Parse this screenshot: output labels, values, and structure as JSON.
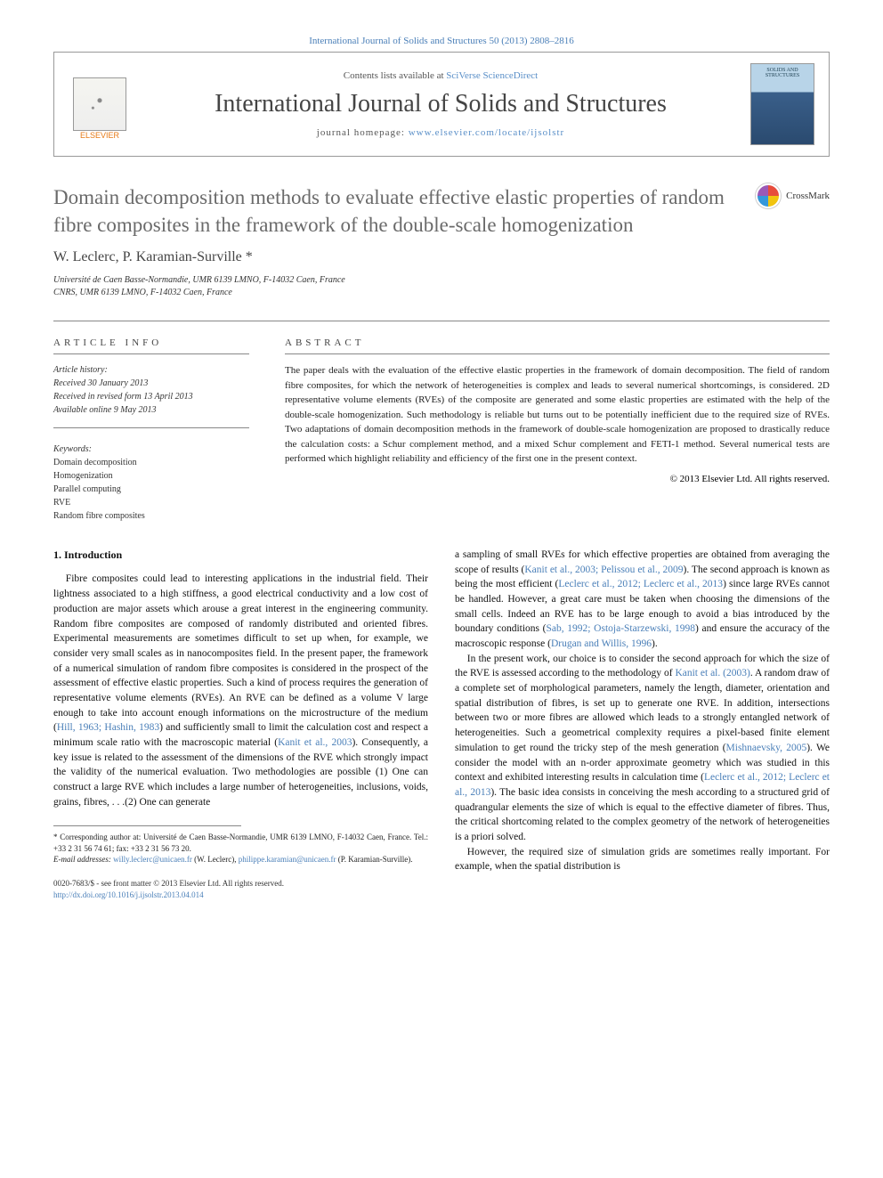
{
  "header": {
    "citation_prefix": "International Journal of Solids and Structures 50 (2013) 2808–2816",
    "contents_prefix": "Contents lists available at ",
    "contents_link": "SciVerse ScienceDirect",
    "journal_title": "International Journal of Solids and Structures",
    "homepage_prefix": "journal homepage: ",
    "homepage_link": "www.elsevier.com/locate/ijsolstr",
    "publisher": "ELSEVIER",
    "cover_label": "SOLIDS AND STRUCTURES"
  },
  "article": {
    "title": "Domain decomposition methods to evaluate effective elastic properties of random fibre composites in the framework of the double-scale homogenization",
    "crossmark": "CrossMark",
    "authors": "W. Leclerc, P. Karamian-Surville",
    "author_star": "*",
    "affil1": "Université de Caen Basse-Normandie, UMR 6139 LMNO, F-14032 Caen, France",
    "affil2": "CNRS, UMR 6139 LMNO, F-14032 Caen, France"
  },
  "info": {
    "label": "ARTICLE INFO",
    "history_label": "Article history:",
    "received": "Received 30 January 2013",
    "revised": "Received in revised form 13 April 2013",
    "online": "Available online 9 May 2013",
    "keywords_label": "Keywords:",
    "kw1": "Domain decomposition",
    "kw2": "Homogenization",
    "kw3": "Parallel computing",
    "kw4": "RVE",
    "kw5": "Random fibre composites"
  },
  "abstract": {
    "label": "ABSTRACT",
    "text": "The paper deals with the evaluation of the effective elastic properties in the framework of domain decomposition. The field of random fibre composites, for which the network of heterogeneities is complex and leads to several numerical shortcomings, is considered. 2D representative volume elements (RVEs) of the composite are generated and some elastic properties are estimated with the help of the double-scale homogenization. Such methodology is reliable but turns out to be potentially inefficient due to the required size of RVEs. Two adaptations of domain decomposition methods in the framework of double-scale homogenization are proposed to drastically reduce the calculation costs: a Schur complement method, and a mixed Schur complement and FETI-1 method. Several numerical tests are performed which highlight reliability and efficiency of the first one in the present context.",
    "copyright": "© 2013 Elsevier Ltd. All rights reserved."
  },
  "body": {
    "section1": "1. Introduction",
    "col1p1a": "Fibre composites could lead to interesting applications in the industrial field. Their lightness associated to a high stiffness, a good electrical conductivity and a low cost of production are major assets which arouse a great interest in the engineering community. Random fibre composites are composed of randomly distributed and oriented fibres. Experimental measurements are sometimes difficult to set up when, for example, we consider very small scales as in nanocomposites field. In the present paper, the framework of a numerical simulation of random fibre composites is considered in the prospect of the assessment of effective elastic properties. Such a kind of process requires the generation of representative volume elements (RVEs). An RVE can be defined as a volume V large enough to take into account enough informations on the microstructure of the medium (",
    "col1c1": "Hill, 1963; Hashin, 1983",
    "col1p1b": ") and sufficiently small to limit the calculation cost and respect a minimum scale ratio with the macroscopic material (",
    "col1c2": "Kanit et al., 2003",
    "col1p1c": "). Consequently, a key issue is related to the assessment of the dimensions of the RVE which strongly impact the validity of the numerical evaluation. Two methodologies are possible (1) One can construct a large RVE which includes a large number of heterogeneities, inclusions, voids, grains, fibres, . . .(2) One can generate",
    "col2p1a": "a sampling of small RVEs for which effective properties are obtained from averaging the scope of results (",
    "col2c1": "Kanit et al., 2003; Pelissou et al., 2009",
    "col2p1b": "). The second approach is known as being the most efficient (",
    "col2c2": "Leclerc et al., 2012; Leclerc et al., 2013",
    "col2p1c": ") since large RVEs cannot be handled. However, a great care must be taken when choosing the dimensions of the small cells. Indeed an RVE has to be large enough to avoid a bias introduced by the boundary conditions (",
    "col2c3": "Sab, 1992; Ostoja-Starzewski, 1998",
    "col2p1d": ") and ensure the accuracy of the macroscopic response (",
    "col2c4": "Drugan and Willis, 1996",
    "col2p1e": ").",
    "col2p2a": "In the present work, our choice is to consider the second approach for which the size of the RVE is assessed according to the methodology of ",
    "col2c5": "Kanit et al. (2003)",
    "col2p2b": ". A random draw of a complete set of morphological parameters, namely the length, diameter, orientation and spatial distribution of fibres, is set up to generate one RVE. In addition, intersections between two or more fibres are allowed which leads to a strongly entangled network of heterogeneities. Such a geometrical complexity requires a pixel-based finite element simulation to get round the tricky step of the mesh generation (",
    "col2c6": "Mishnaevsky, 2005",
    "col2p2c": "). We consider the model with an n-order approximate geometry which was studied in this context and exhibited interesting results in calculation time (",
    "col2c7": "Leclerc et al., 2012; Leclerc et al., 2013",
    "col2p2d": "). The basic idea consists in conceiving the mesh according to a structured grid of quadrangular elements the size of which is equal to the effective diameter of fibres. Thus, the critical shortcoming related to the complex geometry of the network of heterogeneities is a priori solved.",
    "col2p3": "However, the required size of simulation grids are sometimes really important. For example, when the spatial distribution is"
  },
  "footnotes": {
    "corr_label": "* Corresponding author at: Université de Caen Basse-Normandie, UMR 6139 LMNO, F-14032 Caen, France. Tel.: +33 2 31 56 74 61; fax: +33 2 31 56 73 20.",
    "email_label": "E-mail addresses: ",
    "email1": "willy.leclerc@unicaen.fr",
    "email1_suffix": " (W. Leclerc), ",
    "email2": "philippe.karamian@unicaen.fr",
    "email2_suffix": " (P. Karamian-Surville)."
  },
  "bottom": {
    "issn": "0020-7683/$ - see front matter © 2013 Elsevier Ltd. All rights reserved.",
    "doi": "http://dx.doi.org/10.1016/j.ijsolstr.2013.04.014"
  }
}
